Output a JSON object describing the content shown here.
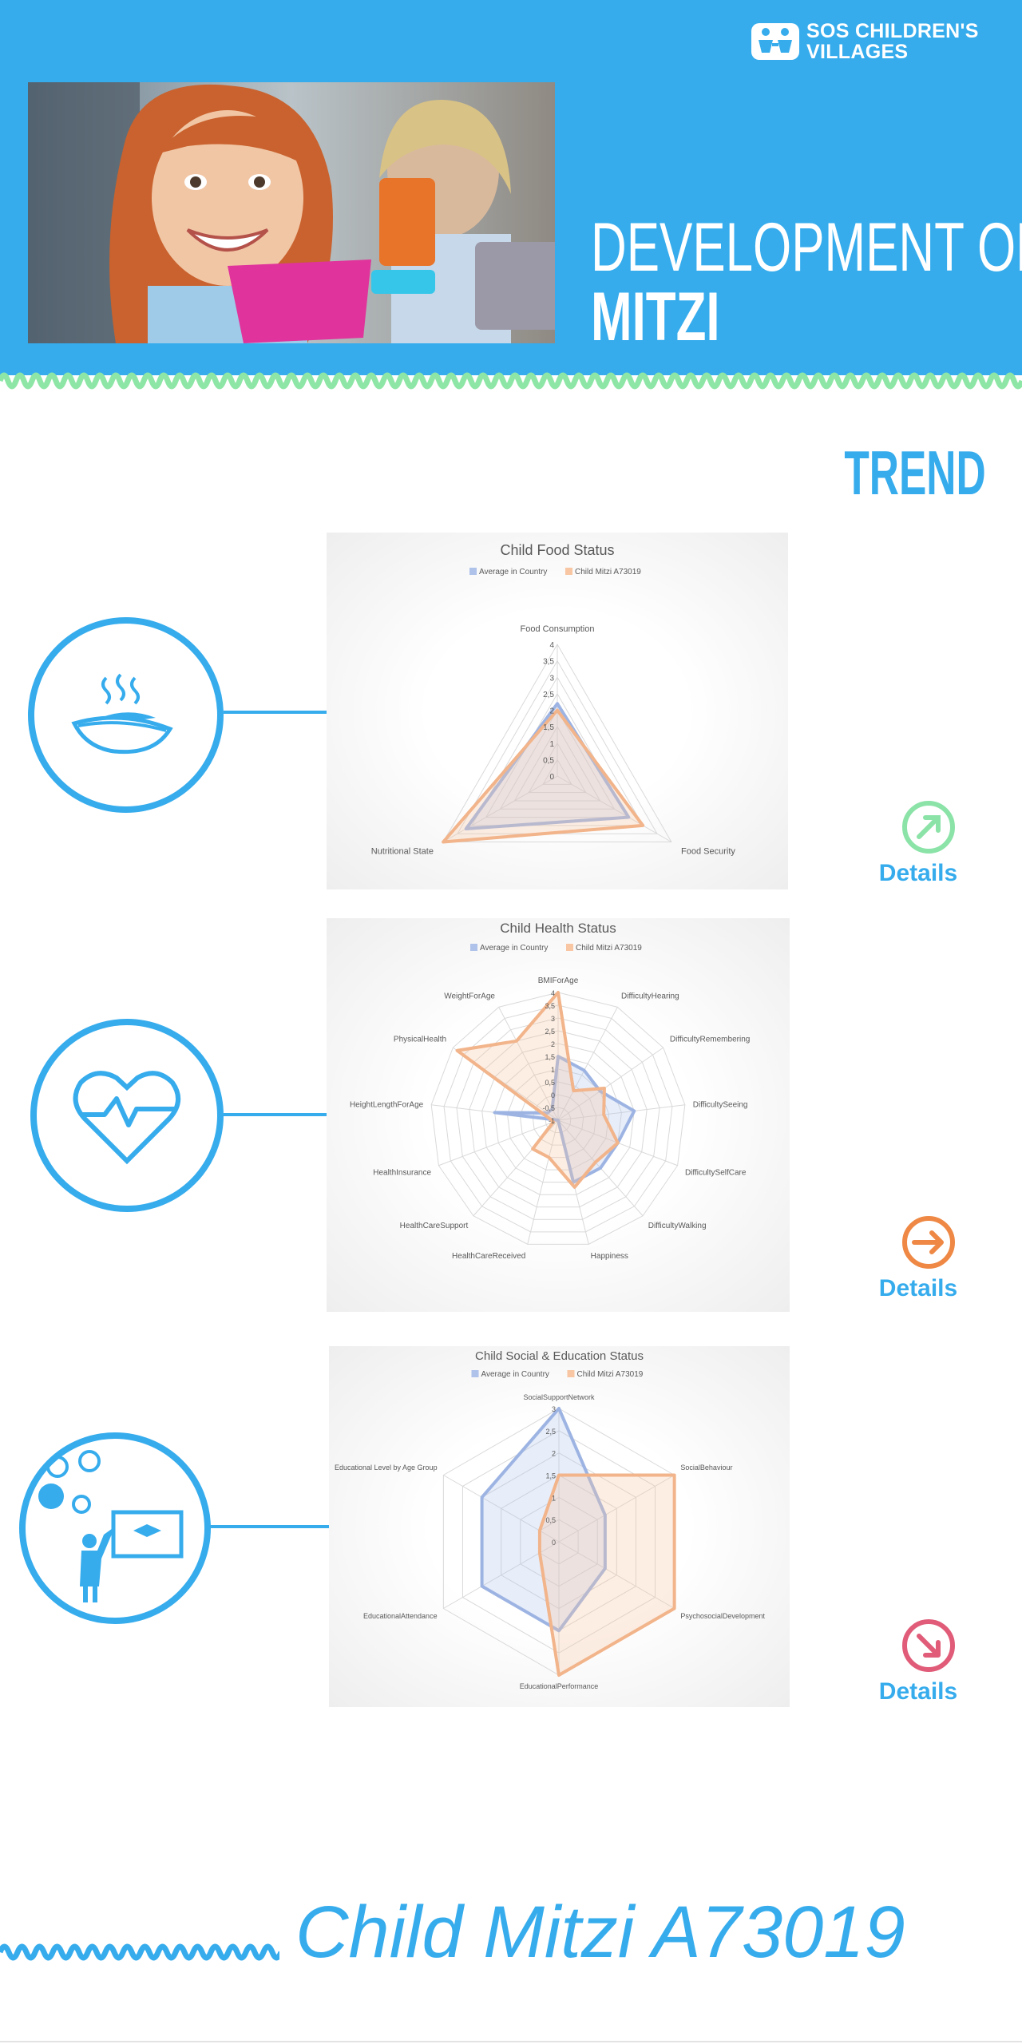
{
  "header": {
    "logo_line1": "SOS CHILDREN'S",
    "logo_line2": "VILLAGES",
    "title": "DEVELOPMENT OF:",
    "name": "MITZI",
    "background_color": "#36aced"
  },
  "trend_label": "TREND",
  "colors": {
    "average": "#aec2ea",
    "child": "#f8c6a2",
    "average_stroke": "#9db4e3",
    "child_stroke": "#f2b48a",
    "accent": "#36aced",
    "trend_up": "#8be3a8",
    "trend_right": "#ee8844",
    "trend_down": "#e05c78"
  },
  "sections": [
    {
      "icon": "food-bowl-icon",
      "trend_icon": "arrow-up-right-icon",
      "details_label": "Details"
    },
    {
      "icon": "heart-pulse-icon",
      "trend_icon": "arrow-right-icon",
      "details_label": "Details"
    },
    {
      "icon": "teacher-education-icon",
      "trend_icon": "arrow-down-right-icon",
      "details_label": "Details"
    }
  ],
  "footer": {
    "child_label": "Child Mitzi A73019"
  },
  "chart_data": [
    {
      "type": "radar",
      "title": "Child Food Status",
      "legend": [
        "Average in Country",
        "Child Mitzi A73019"
      ],
      "legend_position": "top",
      "categories": [
        "Food Consumption",
        "Food Security",
        "Nutritional State"
      ],
      "range": [
        0,
        4
      ],
      "tick_step": 0.5,
      "tick_labels": [
        "0",
        "0,5",
        "1",
        "1,5",
        "2",
        "2,5",
        "3",
        "3,5",
        "4"
      ],
      "series": [
        {
          "name": "Average in Country",
          "values": [
            2.2,
            2.5,
            3.2
          ]
        },
        {
          "name": "Child Mitzi A73019",
          "values": [
            2.0,
            3.0,
            4.0
          ]
        }
      ]
    },
    {
      "type": "radar",
      "title": "Child Health Status",
      "legend": [
        "Average in Country",
        "Child Mitzi A73019"
      ],
      "legend_position": "top",
      "categories": [
        "BMIForAge",
        "DifficultyHearing",
        "DifficultyRemembering",
        "DifficultySeeing",
        "DifficultySelfCare",
        "DifficultyWalking",
        "Happiness",
        "HealthCareReceived",
        "HealthCareSupport",
        "HealthInsurance",
        "HeightLengthForAge",
        "PhysicalHealth",
        "WeightForAge"
      ],
      "range": [
        -1,
        4
      ],
      "tick_step": 0.5,
      "tick_labels": [
        "-1",
        "-0,5",
        "0",
        "0,5",
        "1",
        "1,5",
        "2",
        "2,5",
        "3",
        "3,5",
        "4"
      ],
      "series": [
        {
          "name": "Average in Country",
          "values": [
            1.5,
            1.2,
            1.0,
            2.0,
            1.5,
            1.5,
            1.5,
            -1,
            -1,
            -1,
            1.5,
            -0.5,
            -0.5
          ]
        },
        {
          "name": "Child Mitzi A73019",
          "values": [
            4.0,
            0.3,
            1.2,
            0.8,
            1.5,
            1.2,
            1.7,
            0.5,
            0.5,
            -0.8,
            -0.7,
            3.8,
            2.5
          ]
        }
      ]
    },
    {
      "type": "radar",
      "title": "Child Social & Education Status",
      "legend": [
        "Average in Country",
        "Child Mitzi A73019"
      ],
      "legend_position": "top",
      "categories": [
        "SocialSupportNetwork",
        "SocialBehaviour",
        "PsychosocialDevelopment",
        "EducationalPerformance",
        "EducationalAttendance",
        "Educational Level by Age Group"
      ],
      "range": [
        0,
        3
      ],
      "tick_step": 0.5,
      "tick_labels": [
        "0",
        "0,5",
        "1",
        "1,5",
        "2",
        "2,5",
        "3"
      ],
      "series": [
        {
          "name": "Average in Country",
          "values": [
            3.0,
            1.2,
            1.2,
            2.0,
            2.0,
            2.0
          ]
        },
        {
          "name": "Child Mitzi A73019",
          "values": [
            1.5,
            3.0,
            3.0,
            3.0,
            0.5,
            0.5
          ]
        }
      ]
    }
  ]
}
